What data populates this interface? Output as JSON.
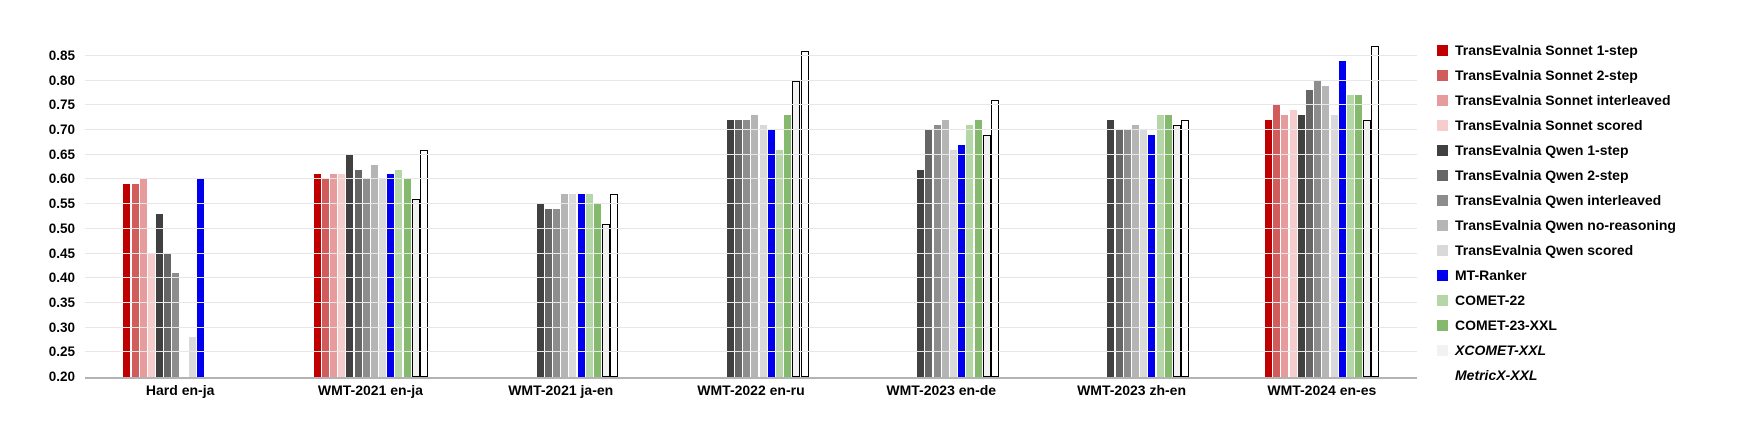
{
  "chart_data": {
    "type": "bar",
    "title": "",
    "xlabel": "",
    "ylabel": "",
    "ylim": [
      0.2,
      0.875
    ],
    "yticks": [
      0.2,
      0.25,
      0.3,
      0.35,
      0.4,
      0.45,
      0.5,
      0.55,
      0.6,
      0.65,
      0.7,
      0.75,
      0.8,
      0.85
    ],
    "grid": true,
    "legend_position": "right",
    "categories": [
      "Hard en-ja",
      "WMT-2021 en-ja",
      "WMT-2021 ja-en",
      "WMT-2022 en-ru",
      "WMT-2023 en-de",
      "WMT-2023 zh-en",
      "WMT-2024 en-es"
    ],
    "series": [
      {
        "name": "TransEvalnia Sonnet 1-step",
        "color": "#c00000",
        "outlined": false,
        "italic": false,
        "values": [
          0.59,
          0.61,
          null,
          null,
          null,
          null,
          0.72
        ]
      },
      {
        "name": "TransEvalnia Sonnet 2-step",
        "color": "#d05c5c",
        "outlined": false,
        "italic": false,
        "values": [
          0.59,
          0.6,
          null,
          null,
          null,
          null,
          0.75
        ]
      },
      {
        "name": "TransEvalnia Sonnet interleaved",
        "color": "#e69c9c",
        "outlined": false,
        "italic": false,
        "values": [
          0.6,
          0.61,
          null,
          null,
          null,
          null,
          0.73
        ]
      },
      {
        "name": "TransEvalnia Sonnet scored",
        "color": "#f5cdcd",
        "outlined": false,
        "italic": false,
        "values": [
          0.45,
          0.61,
          null,
          null,
          null,
          null,
          0.74
        ]
      },
      {
        "name": "TransEvalnia Qwen 1-step",
        "color": "#404040",
        "outlined": false,
        "italic": false,
        "values": [
          0.53,
          0.65,
          0.55,
          0.72,
          0.62,
          0.72,
          0.73
        ]
      },
      {
        "name": "TransEvalnia Qwen 2-step",
        "color": "#666666",
        "outlined": false,
        "italic": false,
        "values": [
          0.45,
          0.62,
          0.54,
          0.72,
          0.7,
          0.7,
          0.78
        ]
      },
      {
        "name": "TransEvalnia Qwen interleaved",
        "color": "#8d8d8d",
        "outlined": false,
        "italic": false,
        "values": [
          0.41,
          0.6,
          0.54,
          0.72,
          0.71,
          0.7,
          0.8
        ]
      },
      {
        "name": "TransEvalnia Qwen no-reasoning",
        "color": "#b5b5b5",
        "outlined": false,
        "italic": false,
        "values": [
          null,
          0.63,
          0.57,
          0.73,
          0.72,
          0.71,
          0.79
        ]
      },
      {
        "name": "TransEvalnia Qwen scored",
        "color": "#d9d9d9",
        "outlined": false,
        "italic": false,
        "values": [
          0.28,
          0.6,
          0.57,
          0.71,
          0.66,
          0.7,
          0.73
        ]
      },
      {
        "name": "MT-Ranker",
        "color": "#0000ee",
        "outlined": false,
        "italic": false,
        "values": [
          0.6,
          0.61,
          0.57,
          0.7,
          0.67,
          0.69,
          0.84
        ]
      },
      {
        "name": "COMET-22",
        "color": "#b5d6a7",
        "outlined": false,
        "italic": false,
        "values": [
          null,
          0.62,
          0.57,
          0.66,
          0.71,
          0.73,
          0.77
        ]
      },
      {
        "name": "COMET-23-XXL",
        "color": "#84b96e",
        "outlined": false,
        "italic": false,
        "values": [
          null,
          0.6,
          0.55,
          0.73,
          0.72,
          0.73,
          0.77
        ]
      },
      {
        "name": "XCOMET-XXL",
        "color": "#f2f2f2",
        "outlined": true,
        "italic": true,
        "values": [
          null,
          0.56,
          0.51,
          0.8,
          0.69,
          0.71,
          0.72
        ]
      },
      {
        "name": "MetricX-XXL",
        "color": "#ffffff",
        "outlined": true,
        "italic": true,
        "values": [
          null,
          0.66,
          0.57,
          0.86,
          0.76,
          0.72,
          0.87
        ]
      }
    ],
    "axis_colors": {
      "gridline": "#e7e7e7",
      "axis_line": "#b3b3b3",
      "tick_label": "#000000"
    }
  }
}
